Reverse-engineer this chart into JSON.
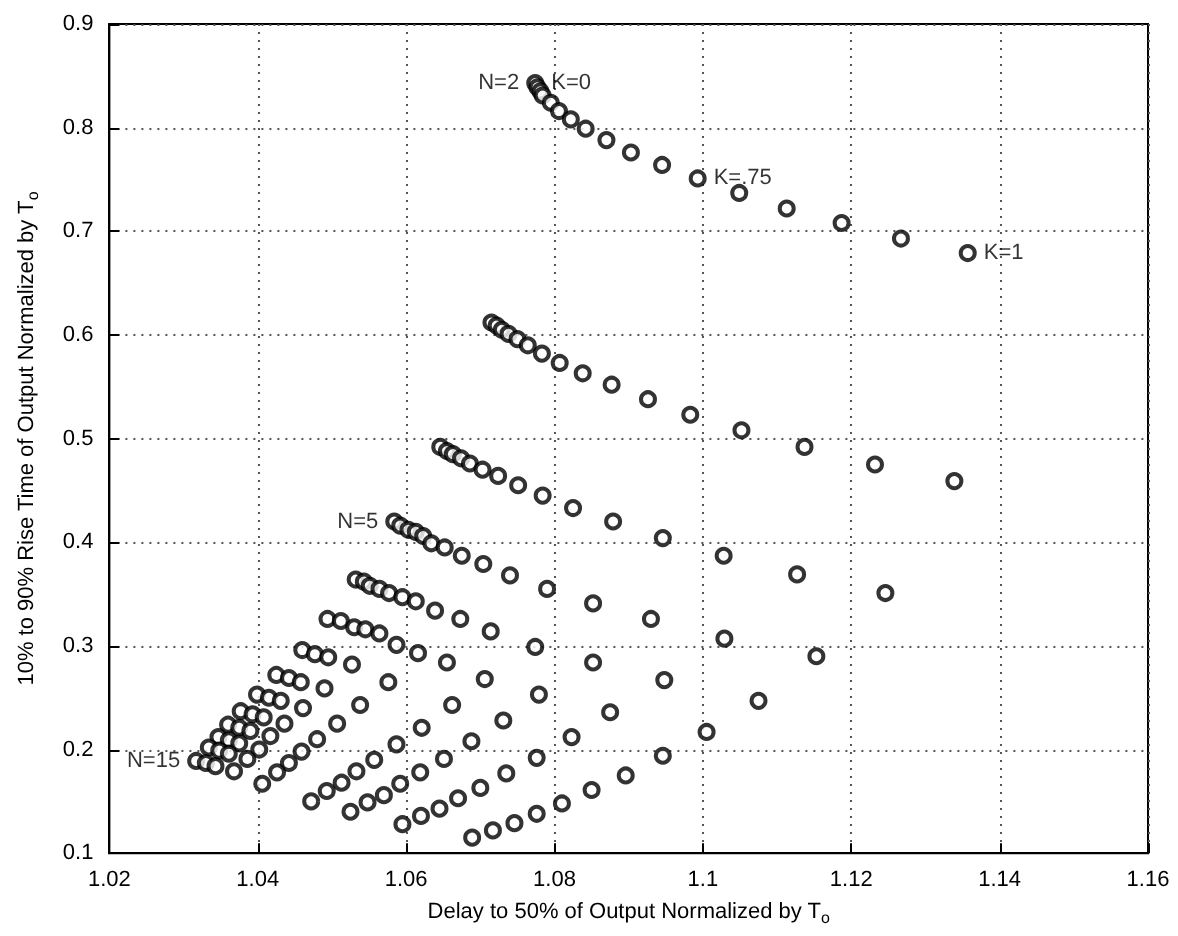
{
  "chart_data": {
    "type": "scatter",
    "xlabel": "Delay to 50% of Output Normalized by T$_{o}$",
    "ylabel": "10% to 90% Rise Time of Output Normalized by T$_{o}$",
    "xlim": [
      1.02,
      1.16
    ],
    "xticks": [
      1.02,
      1.04,
      1.06,
      1.08,
      1.1,
      1.12,
      1.14,
      1.16
    ],
    "ylim": [
      0.1,
      0.9
    ],
    "yticks": [
      0.1,
      0.2,
      0.3,
      0.4,
      0.5,
      0.6,
      0.7,
      0.8,
      0.9
    ],
    "grid": true,
    "marker": "circle",
    "annotations": [
      {
        "text": "N=2",
        "x": 1.0774,
        "y": 0.843
      },
      {
        "text": "K=0",
        "x": 1.0774,
        "y": 0.843
      },
      {
        "text": "K=.75",
        "x": 1.0993,
        "y": 0.751
      },
      {
        "text": "K=1",
        "x": 1.1357,
        "y": 0.679
      },
      {
        "text": "N=5",
        "x": 1.0584,
        "y": 0.42
      },
      {
        "text": "N=15",
        "x": 1.0317,
        "y": 0.189
      }
    ],
    "series": [
      {
        "color": "#000000",
        "x": [
          1.0774,
          1.0777,
          1.0781,
          1.0784,
          1.0795,
          1.0806,
          1.0822,
          1.0842,
          1.087,
          1.0903,
          1.0945,
          1.0993,
          1.1049,
          1.1113,
          1.1187,
          1.1267,
          1.1357
        ],
        "values": [
          0.843,
          0.839,
          0.835,
          0.831,
          0.824,
          0.816,
          0.808,
          0.799,
          0.788,
          0.776,
          0.764,
          0.751,
          0.737,
          0.722,
          0.708,
          0.693,
          0.679
        ]
      },
      {
        "color": "#000000",
        "x": [
          1.0715,
          1.0722,
          1.0729,
          1.0738,
          1.075,
          1.0764,
          1.0783,
          1.0807,
          1.0838,
          1.0877,
          1.0926,
          1.0983,
          1.1052,
          1.1137,
          1.1232,
          1.1339
        ],
        "values": [
          0.612,
          0.609,
          0.605,
          0.601,
          0.596,
          0.59,
          0.582,
          0.573,
          0.563,
          0.552,
          0.538,
          0.523,
          0.508,
          0.492,
          0.475,
          0.459
        ]
      },
      {
        "color": "#000000",
        "x": [
          1.0646,
          1.0655,
          1.0663,
          1.0674,
          1.0686,
          1.0703,
          1.0724,
          1.0751,
          1.0784,
          1.0825,
          1.0879,
          1.0946,
          1.1028,
          1.1127,
          1.1246
        ],
        "values": [
          0.492,
          0.488,
          0.485,
          0.481,
          0.476,
          0.47,
          0.464,
          0.455,
          0.445,
          0.433,
          0.42,
          0.404,
          0.387,
          0.369,
          0.351
        ]
      },
      {
        "color": "#000000",
        "x": [
          1.0584,
          1.0592,
          1.0603,
          1.0613,
          1.0623,
          1.0634,
          1.0652,
          1.0675,
          1.0704,
          1.074,
          1.079,
          1.0852,
          1.093,
          1.1029,
          1.1153
        ],
        "values": [
          0.42,
          0.416,
          0.412,
          0.41,
          0.406,
          0.399,
          0.395,
          0.387,
          0.379,
          0.368,
          0.355,
          0.341,
          0.326,
          0.307,
          0.29
        ]
      },
      {
        "color": "#000000",
        "x": [
          1.0532,
          1.0543,
          1.0551,
          1.0564,
          1.0577,
          1.0595,
          1.0613,
          1.0639,
          1.0673,
          1.0714,
          1.0774,
          1.0852,
          1.0948,
          1.1075
        ],
        "values": [
          0.364,
          0.362,
          0.358,
          0.355,
          0.351,
          0.347,
          0.343,
          0.334,
          0.326,
          0.314,
          0.299,
          0.284,
          0.267,
          0.247
        ]
      },
      {
        "color": "#000000",
        "x": [
          1.0494,
          1.0512,
          1.053,
          1.0545,
          1.0564,
          1.0587,
          1.0616,
          1.0655,
          1.0706,
          1.0779,
          1.0875,
          1.1005
        ],
        "values": [
          0.326,
          0.324,
          0.318,
          0.316,
          0.312,
          0.301,
          0.293,
          0.284,
          0.268,
          0.253,
          0.236,
          0.217
        ]
      },
      {
        "color": "#000000",
        "x": [
          1.046,
          1.0477,
          1.0495,
          1.0527,
          1.0576,
          1.0662,
          1.0731,
          1.0823,
          1.0946
        ],
        "values": [
          0.296,
          0.292,
          0.289,
          0.282,
          0.265,
          0.243,
          0.228,
          0.212,
          0.194
        ]
      },
      {
        "color": "#000000",
        "x": [
          1.0425,
          1.0442,
          1.0458,
          1.049,
          1.0538,
          1.0621,
          1.0688,
          1.0776,
          1.0896
        ],
        "values": [
          0.272,
          0.269,
          0.265,
          0.259,
          0.243,
          0.221,
          0.208,
          0.192,
          0.175
        ]
      },
      {
        "color": "#000000",
        "x": [
          1.0399,
          1.0415,
          1.0431,
          1.0461,
          1.0507,
          1.0587,
          1.0651,
          1.0735,
          1.085
        ],
        "values": [
          0.253,
          0.25,
          0.247,
          0.24,
          0.225,
          0.205,
          0.191,
          0.177,
          0.161
        ]
      },
      {
        "color": "#000000",
        "x": [
          1.0377,
          1.0393,
          1.0408,
          1.0436,
          1.048,
          1.0557,
          1.0619,
          1.07,
          1.081
        ],
        "values": [
          0.237,
          0.234,
          0.231,
          0.225,
          0.21,
          0.19,
          0.178,
          0.163,
          0.148
        ]
      },
      {
        "color": "#000000",
        "x": [
          1.036,
          1.0375,
          1.039,
          1.0417,
          1.0459,
          1.0533,
          1.0592,
          1.067,
          1.0776
        ],
        "values": [
          0.224,
          0.221,
          0.218,
          0.213,
          0.198,
          0.179,
          0.167,
          0.153,
          0.138
        ]
      },
      {
        "color": "#000000",
        "x": [
          1.0347,
          1.0361,
          1.0375,
          1.0402,
          1.0442,
          1.0513,
          1.057,
          1.0645,
          1.0746
        ],
        "values": [
          0.212,
          0.209,
          0.206,
          0.2,
          0.187,
          0.168,
          0.156,
          0.143,
          0.129
        ]
      },
      {
        "color": "#000000",
        "x": [
          1.0334,
          1.0348,
          1.0361,
          1.0386,
          1.0426,
          1.0493,
          1.0548,
          1.062,
          1.0717
        ],
        "values": [
          0.202,
          0.199,
          0.196,
          0.191,
          0.178,
          0.16,
          0.149,
          0.136,
          0.122
        ]
      },
      {
        "color": "#000000",
        "x": [
          1.0317,
          1.033,
          1.0343,
          1.0368,
          1.0406,
          1.0472,
          1.0525,
          1.0595,
          1.0689
        ],
        "values": [
          0.189,
          0.187,
          0.184,
          0.179,
          0.167,
          0.15,
          0.14,
          0.128,
          0.115
        ]
      }
    ]
  }
}
